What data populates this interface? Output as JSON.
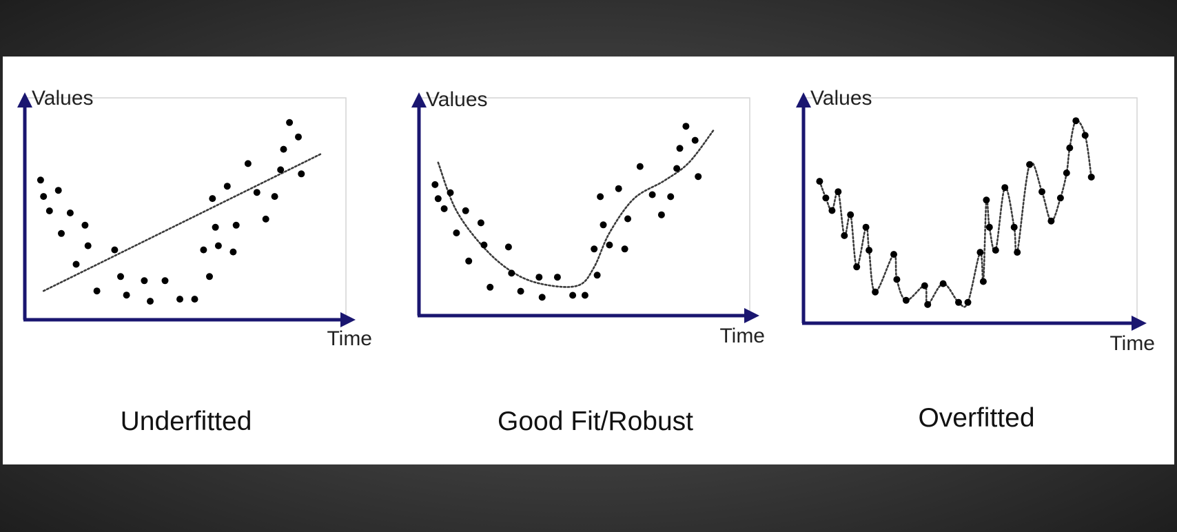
{
  "colors": {
    "axis": "#1a1670",
    "frame": "#d4d4d4",
    "points": "#000000",
    "fit_line": "#3a3a3a"
  },
  "chart_data": [
    {
      "type": "scatter",
      "title": "Underfitted",
      "xlabel": "Time",
      "ylabel": "Values",
      "xlim": [
        0,
        100
      ],
      "ylim": [
        0,
        100
      ],
      "grid": false,
      "points": [
        [
          3,
          64
        ],
        [
          4,
          56
        ],
        [
          6,
          49
        ],
        [
          9,
          59
        ],
        [
          10,
          38
        ],
        [
          13,
          48
        ],
        [
          15,
          23
        ],
        [
          18,
          42
        ],
        [
          19,
          32
        ],
        [
          22,
          10
        ],
        [
          28,
          30
        ],
        [
          30,
          17
        ],
        [
          32,
          8
        ],
        [
          38,
          15
        ],
        [
          40,
          5
        ],
        [
          45,
          15
        ],
        [
          50,
          6
        ],
        [
          55,
          6
        ],
        [
          58,
          30
        ],
        [
          60,
          17
        ],
        [
          61,
          55
        ],
        [
          62,
          41
        ],
        [
          63,
          32
        ],
        [
          66,
          61
        ],
        [
          68,
          29
        ],
        [
          69,
          42
        ],
        [
          73,
          72
        ],
        [
          76,
          58
        ],
        [
          79,
          45
        ],
        [
          82,
          56
        ],
        [
          84,
          69
        ],
        [
          85,
          79
        ],
        [
          87,
          92
        ],
        [
          90,
          85
        ],
        [
          91,
          67
        ]
      ],
      "fit": {
        "kind": "linear",
        "points": [
          [
            4,
            10
          ],
          [
            98,
            77
          ]
        ]
      }
    },
    {
      "type": "scatter",
      "title": "Good Fit/Robust",
      "xlabel": "Time",
      "ylabel": "Values",
      "xlim": [
        0,
        100
      ],
      "ylim": [
        0,
        100
      ],
      "grid": false,
      "points": [
        [
          3,
          61
        ],
        [
          4,
          54
        ],
        [
          6,
          49
        ],
        [
          8,
          57
        ],
        [
          10,
          37
        ],
        [
          13,
          48
        ],
        [
          14,
          23
        ],
        [
          18,
          42
        ],
        [
          19,
          31
        ],
        [
          21,
          10
        ],
        [
          27,
          30
        ],
        [
          28,
          17
        ],
        [
          31,
          8
        ],
        [
          37,
          15
        ],
        [
          38,
          5
        ],
        [
          43,
          15
        ],
        [
          48,
          6
        ],
        [
          52,
          6
        ],
        [
          55,
          29
        ],
        [
          56,
          16
        ],
        [
          57,
          55
        ],
        [
          58,
          41
        ],
        [
          60,
          31
        ],
        [
          63,
          59
        ],
        [
          65,
          29
        ],
        [
          66,
          44
        ],
        [
          70,
          70
        ],
        [
          74,
          56
        ],
        [
          77,
          46
        ],
        [
          80,
          55
        ],
        [
          82,
          69
        ],
        [
          83,
          79
        ],
        [
          85,
          90
        ],
        [
          88,
          83
        ],
        [
          89,
          65
        ]
      ],
      "fit": {
        "kind": "smooth",
        "points": [
          [
            4,
            72
          ],
          [
            10,
            48
          ],
          [
            20,
            28
          ],
          [
            30,
            16
          ],
          [
            40,
            11
          ],
          [
            50,
            11
          ],
          [
            55,
            20
          ],
          [
            60,
            37
          ],
          [
            68,
            54
          ],
          [
            78,
            63
          ],
          [
            86,
            72
          ],
          [
            94,
            88
          ]
        ]
      }
    },
    {
      "type": "scatter",
      "title": "Overfitted",
      "xlabel": "Time",
      "ylabel": "Values",
      "xlim": [
        0,
        100
      ],
      "ylim": [
        0,
        100
      ],
      "grid": false,
      "points": [
        [
          3,
          64
        ],
        [
          5,
          56
        ],
        [
          7,
          50
        ],
        [
          9,
          59
        ],
        [
          11,
          38
        ],
        [
          13,
          48
        ],
        [
          15,
          23
        ],
        [
          18,
          42
        ],
        [
          19,
          31
        ],
        [
          21,
          11
        ],
        [
          27,
          29
        ],
        [
          28,
          17
        ],
        [
          31,
          7
        ],
        [
          37,
          14
        ],
        [
          38,
          5
        ],
        [
          43,
          15
        ],
        [
          48,
          6
        ],
        [
          51,
          6
        ],
        [
          55,
          30
        ],
        [
          56,
          16
        ],
        [
          57,
          55
        ],
        [
          58,
          42
        ],
        [
          60,
          31
        ],
        [
          63,
          61
        ],
        [
          66,
          42
        ],
        [
          67,
          30
        ],
        [
          71,
          72
        ],
        [
          75,
          59
        ],
        [
          78,
          45
        ],
        [
          81,
          56
        ],
        [
          83,
          68
        ],
        [
          84,
          80
        ],
        [
          86,
          93
        ],
        [
          89,
          86
        ],
        [
          91,
          66
        ]
      ],
      "fit": {
        "kind": "through-points",
        "points": [
          [
            3,
            64
          ],
          [
            5,
            56
          ],
          [
            7,
            50
          ],
          [
            9,
            59
          ],
          [
            11,
            38
          ],
          [
            13,
            48
          ],
          [
            15,
            23
          ],
          [
            18,
            42
          ],
          [
            19,
            31
          ],
          [
            21,
            11
          ],
          [
            27,
            29
          ],
          [
            28,
            17
          ],
          [
            31,
            7
          ],
          [
            37,
            14
          ],
          [
            38,
            5
          ],
          [
            43,
            15
          ],
          [
            48,
            6
          ],
          [
            51,
            6
          ],
          [
            55,
            30
          ],
          [
            56,
            16
          ],
          [
            57,
            55
          ],
          [
            58,
            42
          ],
          [
            60,
            31
          ],
          [
            63,
            61
          ],
          [
            66,
            42
          ],
          [
            67,
            30
          ],
          [
            71,
            72
          ],
          [
            75,
            59
          ],
          [
            78,
            45
          ],
          [
            81,
            56
          ],
          [
            83,
            68
          ],
          [
            84,
            80
          ],
          [
            86,
            93
          ],
          [
            89,
            86
          ],
          [
            91,
            66
          ]
        ]
      }
    }
  ]
}
